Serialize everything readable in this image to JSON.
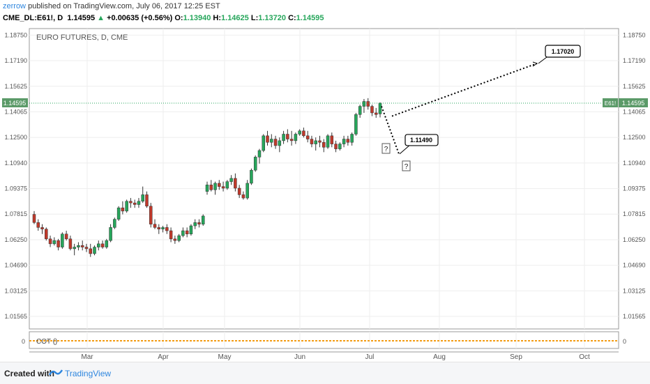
{
  "header": {
    "user": "zerrow",
    "published": "published on TradingView.com, July 06, 2017 12:25 EST",
    "symbol": "CME_DL:E61!, D",
    "price": "1.14595",
    "change_arrow": "▲",
    "change": "+0.00635 (+0.56%)",
    "o_label": "O:",
    "o_value": "1.13940",
    "h_label": "H:",
    "h_value": "1.14625",
    "l_label": "L:",
    "l_value": "1.13720",
    "c_label": "C:",
    "c_value": "1.14595"
  },
  "chart_title": "EURO FUTURES, D, CME",
  "indicator_label": "COT ()",
  "indicator_value": "0",
  "price_tag": "1.14595",
  "price_tag_short": "E61!",
  "annotations": {
    "target_high": "1.17020",
    "target_low": "1.11490",
    "question": "?"
  },
  "footer": {
    "created": "Created with",
    "brand": "TradingView"
  },
  "colors": {
    "up": "#26a65b",
    "down": "#c0392b",
    "accent": "#2e86de",
    "cot_line": "#f39c12"
  },
  "chart_data": {
    "type": "candlestick",
    "title": "EURO FUTURES, D, CME",
    "y_ticks": [
      "1.18750",
      "1.17190",
      "1.15625",
      "1.14065",
      "1.12500",
      "1.10940",
      "1.09375",
      "1.07815",
      "1.06250",
      "1.04690",
      "1.03125",
      "1.01565"
    ],
    "x_ticks": [
      "Mar",
      "Apr",
      "May",
      "Jun",
      "Jul",
      "Aug",
      "Sep",
      "Oct"
    ],
    "ylim": [
      1.008,
      1.1915
    ],
    "last_price": 1.14595,
    "candles": [
      [
        1.078,
        1.08,
        1.072,
        1.073
      ],
      [
        1.073,
        1.075,
        1.068,
        1.07
      ],
      [
        1.07,
        1.072,
        1.066,
        1.069
      ],
      [
        1.069,
        1.07,
        1.062,
        1.063
      ],
      [
        1.063,
        1.065,
        1.058,
        1.06
      ],
      [
        1.06,
        1.064,
        1.059,
        1.062
      ],
      [
        1.062,
        1.063,
        1.056,
        1.058
      ],
      [
        1.058,
        1.067,
        1.057,
        1.066
      ],
      [
        1.066,
        1.068,
        1.062,
        1.063
      ],
      [
        1.063,
        1.065,
        1.056,
        1.057
      ],
      [
        1.057,
        1.06,
        1.053,
        1.058
      ],
      [
        1.058,
        1.061,
        1.056,
        1.059
      ],
      [
        1.059,
        1.062,
        1.056,
        1.058
      ],
      [
        1.058,
        1.06,
        1.055,
        1.057
      ],
      [
        1.057,
        1.06,
        1.052,
        1.054
      ],
      [
        1.054,
        1.059,
        1.053,
        1.058
      ],
      [
        1.058,
        1.062,
        1.056,
        1.06
      ],
      [
        1.06,
        1.062,
        1.057,
        1.058
      ],
      [
        1.058,
        1.063,
        1.057,
        1.062
      ],
      [
        1.062,
        1.072,
        1.061,
        1.07
      ],
      [
        1.07,
        1.076,
        1.069,
        1.075
      ],
      [
        1.075,
        1.083,
        1.074,
        1.082
      ],
      [
        1.082,
        1.086,
        1.078,
        1.08
      ],
      [
        1.08,
        1.087,
        1.079,
        1.086
      ],
      [
        1.086,
        1.088,
        1.082,
        1.085
      ],
      [
        1.085,
        1.087,
        1.082,
        1.084
      ],
      [
        1.084,
        1.088,
        1.082,
        1.086
      ],
      [
        1.086,
        1.095,
        1.085,
        1.09
      ],
      [
        1.09,
        1.092,
        1.082,
        1.083
      ],
      [
        1.083,
        1.085,
        1.07,
        1.072
      ],
      [
        1.072,
        1.075,
        1.069,
        1.07
      ],
      [
        1.07,
        1.072,
        1.066,
        1.069
      ],
      [
        1.069,
        1.071,
        1.067,
        1.07
      ],
      [
        1.07,
        1.072,
        1.066,
        1.068
      ],
      [
        1.068,
        1.07,
        1.061,
        1.063
      ],
      [
        1.063,
        1.065,
        1.06,
        1.062
      ],
      [
        1.062,
        1.066,
        1.061,
        1.065
      ],
      [
        1.065,
        1.07,
        1.064,
        1.068
      ],
      [
        1.068,
        1.07,
        1.064,
        1.066
      ],
      [
        1.066,
        1.072,
        1.065,
        1.071
      ],
      [
        1.071,
        1.075,
        1.069,
        1.073
      ],
      [
        1.073,
        1.075,
        1.07,
        1.072
      ],
      [
        1.072,
        1.078,
        1.071,
        1.077
      ],
      [
        1.092,
        1.098,
        1.09,
        1.096
      ],
      [
        1.096,
        1.099,
        1.092,
        1.093
      ],
      [
        1.093,
        1.098,
        1.09,
        1.097
      ],
      [
        1.097,
        1.099,
        1.093,
        1.095
      ],
      [
        1.095,
        1.098,
        1.092,
        1.094
      ],
      [
        1.094,
        1.099,
        1.093,
        1.098
      ],
      [
        1.098,
        1.102,
        1.096,
        1.1
      ],
      [
        1.1,
        1.103,
        1.092,
        1.094
      ],
      [
        1.094,
        1.096,
        1.088,
        1.09
      ],
      [
        1.09,
        1.092,
        1.087,
        1.088
      ],
      [
        1.088,
        1.099,
        1.087,
        1.097
      ],
      [
        1.097,
        1.106,
        1.096,
        1.105
      ],
      [
        1.105,
        1.114,
        1.104,
        1.113
      ],
      [
        1.113,
        1.118,
        1.109,
        1.117
      ],
      [
        1.117,
        1.127,
        1.116,
        1.126
      ],
      [
        1.126,
        1.129,
        1.12,
        1.122
      ],
      [
        1.122,
        1.127,
        1.119,
        1.124
      ],
      [
        1.124,
        1.126,
        1.118,
        1.12
      ],
      [
        1.12,
        1.125,
        1.116,
        1.123
      ],
      [
        1.123,
        1.129,
        1.121,
        1.127
      ],
      [
        1.127,
        1.13,
        1.122,
        1.124
      ],
      [
        1.124,
        1.129,
        1.12,
        1.123
      ],
      [
        1.123,
        1.128,
        1.121,
        1.127
      ],
      [
        1.127,
        1.13,
        1.126,
        1.129
      ],
      [
        1.129,
        1.131,
        1.125,
        1.126
      ],
      [
        1.126,
        1.129,
        1.122,
        1.124
      ],
      [
        1.124,
        1.126,
        1.119,
        1.121
      ],
      [
        1.121,
        1.125,
        1.117,
        1.123
      ],
      [
        1.123,
        1.126,
        1.119,
        1.122
      ],
      [
        1.122,
        1.124,
        1.116,
        1.119
      ],
      [
        1.119,
        1.127,
        1.118,
        1.126
      ],
      [
        1.126,
        1.128,
        1.119,
        1.121
      ],
      [
        1.121,
        1.123,
        1.116,
        1.118
      ],
      [
        1.118,
        1.122,
        1.117,
        1.121
      ],
      [
        1.121,
        1.126,
        1.119,
        1.124
      ],
      [
        1.124,
        1.126,
        1.12,
        1.122
      ],
      [
        1.122,
        1.128,
        1.12,
        1.127
      ],
      [
        1.127,
        1.14,
        1.126,
        1.139
      ],
      [
        1.139,
        1.145,
        1.137,
        1.144
      ],
      [
        1.144,
        1.1485,
        1.14,
        1.147
      ],
      [
        1.147,
        1.149,
        1.142,
        1.144
      ],
      [
        1.144,
        1.145,
        1.138,
        1.14
      ],
      [
        1.14,
        1.143,
        1.137,
        1.139
      ],
      [
        1.1394,
        1.1463,
        1.1372,
        1.146
      ]
    ],
    "forecast_lines": [
      {
        "from": 1.138,
        "to": 1.1702,
        "style": "dotted"
      },
      {
        "from": 1.144,
        "to": 1.1149,
        "style": "dotted"
      }
    ],
    "indicator": {
      "name": "COT ()",
      "value": 0
    }
  }
}
